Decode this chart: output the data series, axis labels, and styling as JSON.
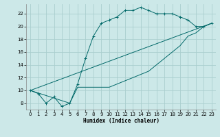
{
  "xlabel": "Humidex (Indice chaleur)",
  "bg_color": "#cce8e8",
  "grid_color": "#aacece",
  "line_color": "#006868",
  "xlim": [
    -0.5,
    23.5
  ],
  "ylim": [
    7.0,
    23.5
  ],
  "xticks": [
    0,
    1,
    2,
    3,
    4,
    5,
    6,
    7,
    8,
    9,
    10,
    11,
    12,
    13,
    14,
    15,
    16,
    17,
    18,
    19,
    20,
    21,
    22,
    23
  ],
  "yticks": [
    8,
    10,
    12,
    14,
    16,
    18,
    20,
    22
  ],
  "series1_x": [
    0,
    1,
    2,
    3,
    4,
    5,
    6,
    7,
    8,
    9,
    10,
    11,
    12,
    13,
    14,
    15,
    16,
    17,
    18,
    19,
    20,
    21,
    22,
    23
  ],
  "series1_y": [
    10,
    9.5,
    8,
    9,
    7.5,
    8,
    11,
    15,
    18.5,
    20.5,
    21,
    21.5,
    22.5,
    22.5,
    23,
    22.5,
    22,
    22,
    22,
    21.5,
    21,
    20,
    20,
    20.5
  ],
  "series2_x": [
    0,
    5,
    6,
    7,
    8,
    9,
    10,
    11,
    12,
    13,
    14,
    15,
    16,
    17,
    18,
    19,
    20,
    21,
    22,
    23
  ],
  "series2_y": [
    10,
    8,
    10.5,
    10.5,
    10.5,
    10.5,
    10.5,
    11,
    11.5,
    12,
    12.5,
    13,
    14,
    15,
    16,
    17,
    18.5,
    19,
    20,
    20.5
  ],
  "series3_x": [
    0,
    23
  ],
  "series3_y": [
    10,
    20.5
  ],
  "xlabel_fontsize": 5.5,
  "tick_fontsize": 5.0
}
